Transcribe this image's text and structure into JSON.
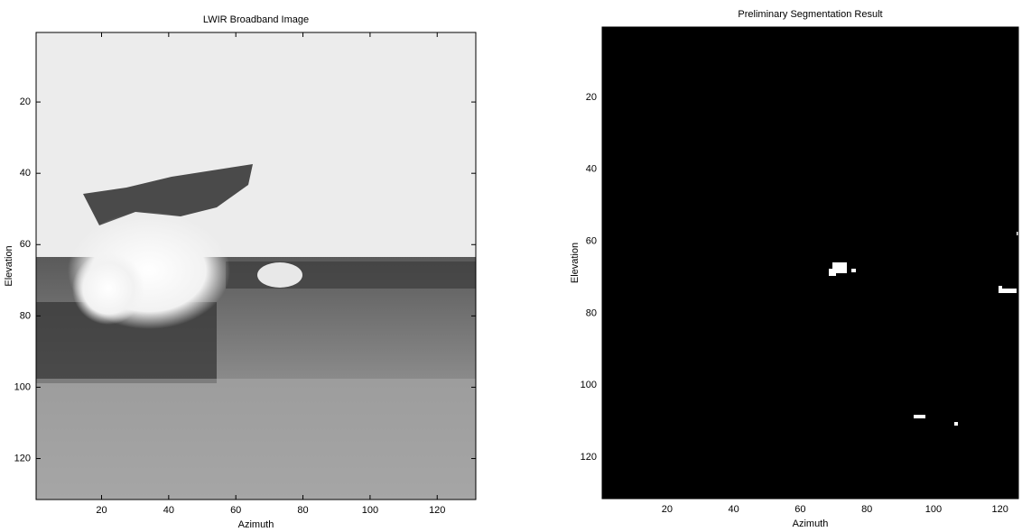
{
  "chart_data": [
    {
      "type": "image",
      "title": "LWIR Broadband Image",
      "x_label": "Azimuth",
      "y_label": "Elevation",
      "xlim": [
        0.5,
        131.5
      ],
      "ylim": [
        0.5,
        131.5
      ],
      "xticks": [
        20,
        40,
        60,
        80,
        100,
        120
      ],
      "yticks": [
        20,
        40,
        60,
        80,
        100,
        120
      ]
    },
    {
      "type": "image",
      "title": "Preliminary Segmentation Result",
      "x_label": "Azimuth",
      "y_label": "Elevation",
      "xlim": [
        0.5,
        125.5
      ],
      "ylim": [
        0.5,
        131.5
      ],
      "xticks": [
        20,
        40,
        60,
        80,
        100,
        120
      ],
      "yticks": [
        20,
        40,
        60,
        80,
        100,
        120
      ]
    }
  ]
}
